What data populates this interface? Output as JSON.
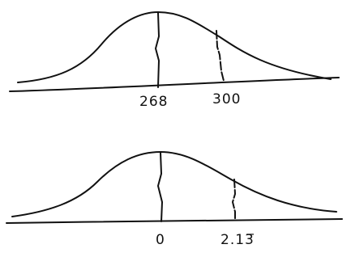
{
  "diagrams": [
    {
      "labels": [
        "268",
        "300"
      ]
    },
    {
      "labels": [
        "0",
        "2.13̅"
      ]
    }
  ]
}
